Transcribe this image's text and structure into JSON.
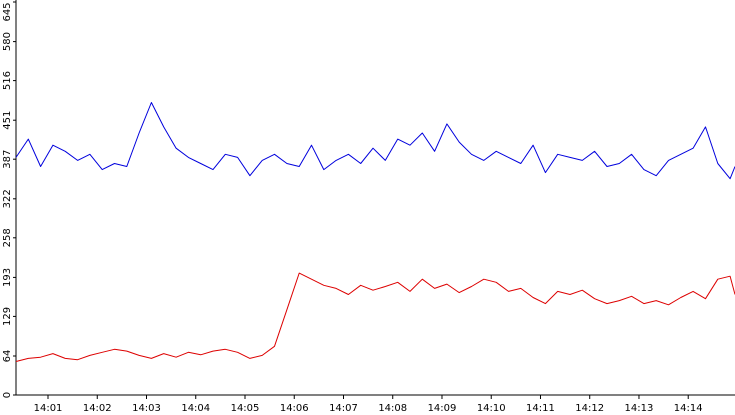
{
  "chart_data": {
    "type": "line",
    "title": "",
    "xlabel": "",
    "ylabel": "",
    "ylim": [
      0,
      645
    ],
    "y_ticks": [
      "0",
      "64",
      "129",
      "193",
      "258",
      "322",
      "387",
      "451",
      "516",
      "580",
      "645"
    ],
    "x_ticks": [
      {
        "label": "14:01",
        "minute": 1
      },
      {
        "label": "14:02",
        "minute": 2
      },
      {
        "label": "14:03",
        "minute": 3
      },
      {
        "label": "14:04",
        "minute": 4
      },
      {
        "label": "14:05",
        "minute": 5
      },
      {
        "label": "14:06",
        "minute": 6
      },
      {
        "label": "14:07",
        "minute": 7
      },
      {
        "label": "14:08",
        "minute": 8
      },
      {
        "label": "14:09",
        "minute": 9
      },
      {
        "label": "14:10",
        "minute": 10
      },
      {
        "label": "14:11",
        "minute": 11
      },
      {
        "label": "14:12",
        "minute": 12
      },
      {
        "label": "14:13",
        "minute": 13
      },
      {
        "label": "14:14",
        "minute": 14
      }
    ],
    "xlim_minutes": [
      0.35,
      14.95
    ],
    "grid": false,
    "legend": "none",
    "series": [
      {
        "color": "#0000dd",
        "x_minutes": [
          0.35,
          0.6,
          0.85,
          1.1,
          1.35,
          1.6,
          1.85,
          2.1,
          2.35,
          2.6,
          2.85,
          3.1,
          3.35,
          3.6,
          3.85,
          4.1,
          4.35,
          4.6,
          4.85,
          5.1,
          5.35,
          5.6,
          5.85,
          6.1,
          6.35,
          6.6,
          6.85,
          7.1,
          7.35,
          7.6,
          7.85,
          8.1,
          8.35,
          8.6,
          8.85,
          9.1,
          9.35,
          9.6,
          9.85,
          10.1,
          10.35,
          10.6,
          10.85,
          11.1,
          11.35,
          11.6,
          11.85,
          12.1,
          12.35,
          12.6,
          12.85,
          13.1,
          13.35,
          13.6,
          13.85,
          14.1,
          14.35,
          14.6,
          14.85,
          14.95
        ],
        "values": [
          390,
          420,
          375,
          410,
          400,
          385,
          395,
          370,
          380,
          375,
          430,
          480,
          440,
          405,
          390,
          380,
          370,
          395,
          390,
          360,
          385,
          395,
          380,
          375,
          410,
          370,
          385,
          395,
          380,
          405,
          385,
          420,
          410,
          430,
          400,
          445,
          415,
          395,
          385,
          400,
          390,
          380,
          410,
          365,
          395,
          390,
          385,
          400,
          375,
          380,
          395,
          370,
          360,
          385,
          395,
          405,
          440,
          380,
          355,
          375
        ]
      },
      {
        "color": "#dd0000",
        "x_minutes": [
          0.35,
          0.6,
          0.85,
          1.1,
          1.35,
          1.6,
          1.85,
          2.1,
          2.35,
          2.6,
          2.85,
          3.1,
          3.35,
          3.6,
          3.85,
          4.1,
          4.35,
          4.6,
          4.85,
          5.1,
          5.35,
          5.6,
          5.85,
          6.1,
          6.35,
          6.6,
          6.85,
          7.1,
          7.35,
          7.6,
          7.85,
          8.1,
          8.35,
          8.6,
          8.85,
          9.1,
          9.35,
          9.6,
          9.85,
          10.1,
          10.35,
          10.6,
          10.85,
          11.1,
          11.35,
          11.6,
          11.85,
          12.1,
          12.35,
          12.6,
          12.85,
          13.1,
          13.35,
          13.6,
          13.85,
          14.1,
          14.35,
          14.6,
          14.85,
          14.95
        ],
        "values": [
          55,
          60,
          62,
          68,
          60,
          58,
          65,
          70,
          75,
          72,
          65,
          60,
          68,
          62,
          70,
          66,
          72,
          75,
          70,
          60,
          65,
          80,
          140,
          200,
          190,
          180,
          175,
          165,
          180,
          172,
          178,
          185,
          170,
          190,
          175,
          182,
          168,
          178,
          190,
          185,
          170,
          175,
          160,
          150,
          170,
          165,
          172,
          158,
          150,
          155,
          162,
          150,
          155,
          148,
          160,
          170,
          158,
          190,
          195,
          165
        ]
      }
    ]
  }
}
